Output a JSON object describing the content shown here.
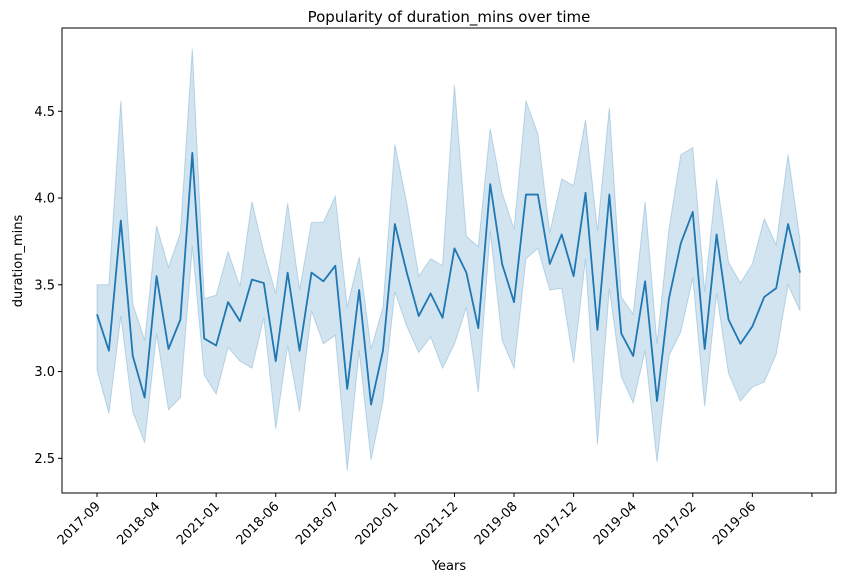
{
  "chart_data": {
    "type": "line",
    "title": "Popularity of duration_mins over time",
    "xlabel": "Years",
    "ylabel": "duration_mins",
    "ylim": [
      2.3,
      4.98
    ],
    "yticks": [
      "2.5",
      "3.0",
      "3.5",
      "4.0",
      "4.5"
    ],
    "xtick_labels": [
      "2017-09",
      "2018-04",
      "2021-01",
      "2018-06",
      "2018-07",
      "2020-01",
      "2021-12",
      "2019-08",
      "2017-12",
      "2019-04",
      "2017-02",
      "2019-06"
    ],
    "grid": false,
    "legend": "none",
    "line_color": "#1f77b4",
    "band_color": "#1f77b4",
    "band_opacity": 0.2,
    "series": [
      {
        "mean": [
          3.33,
          3.12,
          3.87,
          3.09,
          2.85,
          3.55,
          3.13,
          3.3,
          4.26,
          3.19,
          3.15,
          3.4,
          3.29,
          3.53,
          3.51,
          3.06,
          3.57,
          3.12,
          3.57,
          3.52,
          3.61,
          2.9,
          3.47,
          2.81,
          3.12,
          3.85,
          3.57,
          3.32,
          3.45,
          3.31,
          3.71,
          3.57,
          3.25,
          4.08,
          3.62,
          3.4,
          4.02,
          4.02,
          3.62,
          3.79,
          3.55,
          4.03,
          3.24,
          4.02,
          3.22,
          3.09,
          3.52,
          2.83,
          3.42,
          3.74,
          3.92,
          3.13,
          3.79,
          3.3,
          3.16,
          3.26,
          3.43,
          3.48,
          3.85,
          3.57
        ],
        "lower": [
          3.01,
          2.76,
          3.32,
          2.77,
          2.59,
          3.22,
          2.78,
          2.85,
          3.72,
          2.98,
          2.87,
          3.14,
          3.06,
          3.02,
          3.31,
          2.67,
          3.15,
          2.77,
          3.35,
          3.16,
          3.21,
          2.43,
          3.12,
          2.49,
          2.83,
          3.46,
          3.26,
          3.11,
          3.2,
          3.02,
          3.16,
          3.37,
          2.88,
          3.81,
          3.18,
          3.02,
          3.65,
          3.71,
          3.47,
          3.48,
          3.05,
          3.65,
          2.58,
          3.48,
          2.97,
          2.82,
          3.12,
          2.48,
          3.09,
          3.23,
          3.54,
          2.8,
          3.45,
          2.99,
          2.83,
          2.91,
          2.94,
          3.1,
          3.5,
          3.35
        ],
        "upper": [
          3.5,
          3.5,
          4.56,
          3.39,
          3.18,
          3.84,
          3.6,
          3.8,
          4.86,
          3.42,
          3.44,
          3.69,
          3.49,
          3.98,
          3.69,
          3.45,
          3.97,
          3.47,
          3.86,
          3.86,
          4.01,
          3.37,
          3.66,
          3.13,
          3.37,
          4.31,
          3.97,
          3.55,
          3.65,
          3.61,
          4.65,
          3.78,
          3.72,
          4.4,
          4.03,
          3.82,
          4.56,
          4.37,
          3.8,
          4.11,
          4.07,
          4.45,
          3.81,
          4.52,
          3.43,
          3.33,
          3.98,
          3.16,
          3.82,
          4.25,
          4.29,
          3.46,
          4.11,
          3.63,
          3.51,
          3.62,
          3.88,
          3.73,
          4.25,
          3.76
        ]
      }
    ]
  }
}
